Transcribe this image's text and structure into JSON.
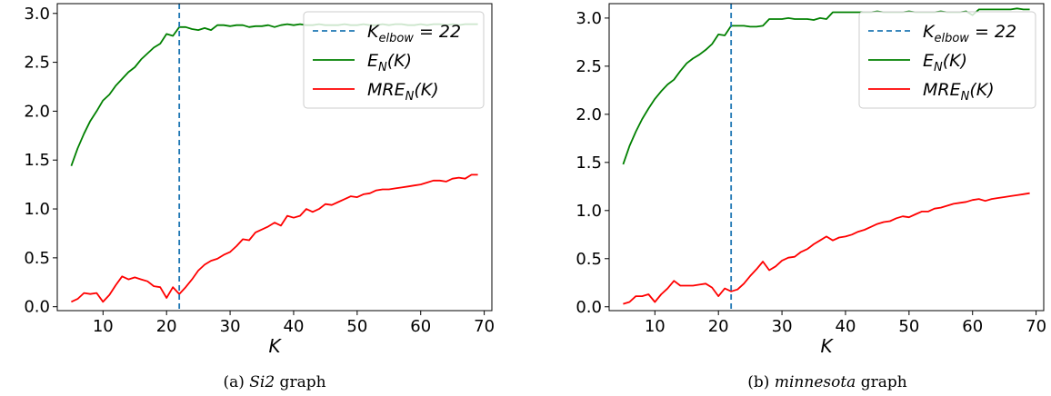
{
  "chart_data": [
    {
      "type": "line",
      "caption_prefix": "(a) ",
      "caption_name": "Si2",
      "caption_suffix": " graph",
      "xlabel": "K",
      "xlim": [
        2.8,
        71.2
      ],
      "ylim": [
        -0.04,
        3.1
      ],
      "xticks": [
        10,
        20,
        30,
        40,
        50,
        60,
        70
      ],
      "yticks": [
        0.0,
        0.5,
        1.0,
        1.5,
        2.0,
        2.5,
        3.0
      ],
      "grid": false,
      "legend_position": "top-right",
      "elbow": {
        "label_base": "K",
        "label_sub": "elbow",
        "label_rest": " = 22",
        "x": 22,
        "color": "#1f77b4"
      },
      "series": [
        {
          "label_base": "E",
          "label_sub": "N",
          "label_rest": "(K)",
          "color": "#008000",
          "x": [
            5,
            6,
            7,
            8,
            9,
            10,
            11,
            12,
            13,
            14,
            15,
            16,
            17,
            18,
            19,
            20,
            21,
            22,
            23,
            24,
            25,
            26,
            27,
            28,
            29,
            30,
            31,
            32,
            33,
            34,
            35,
            36,
            37,
            38,
            39,
            40,
            41,
            42,
            43,
            44,
            45,
            46,
            47,
            48,
            49,
            50,
            51,
            52,
            53,
            54,
            55,
            56,
            57,
            58,
            59,
            60,
            61,
            62,
            63,
            64,
            65,
            66,
            67,
            68,
            69
          ],
          "values": [
            1.44,
            1.62,
            1.77,
            1.9,
            2.0,
            2.11,
            2.17,
            2.26,
            2.33,
            2.4,
            2.45,
            2.53,
            2.59,
            2.65,
            2.69,
            2.79,
            2.77,
            2.86,
            2.86,
            2.84,
            2.83,
            2.85,
            2.83,
            2.88,
            2.88,
            2.87,
            2.88,
            2.88,
            2.86,
            2.87,
            2.87,
            2.88,
            2.86,
            2.88,
            2.89,
            2.88,
            2.89,
            2.88,
            2.88,
            2.89,
            2.88,
            2.88,
            2.88,
            2.89,
            2.88,
            2.88,
            2.89,
            2.88,
            2.88,
            2.89,
            2.88,
            2.89,
            2.89,
            2.88,
            2.88,
            2.89,
            2.88,
            2.89,
            2.89,
            2.88,
            2.89,
            2.88,
            2.89,
            2.89,
            2.89
          ]
        },
        {
          "label_base": "MRE",
          "label_sub": "N",
          "label_rest": "(K)",
          "color": "#ff0000",
          "x": [
            5,
            6,
            7,
            8,
            9,
            10,
            11,
            12,
            13,
            14,
            15,
            16,
            17,
            18,
            19,
            20,
            21,
            22,
            23,
            24,
            25,
            26,
            27,
            28,
            29,
            30,
            31,
            32,
            33,
            34,
            35,
            36,
            37,
            38,
            39,
            40,
            41,
            42,
            43,
            44,
            45,
            46,
            47,
            48,
            49,
            50,
            51,
            52,
            53,
            54,
            55,
            56,
            57,
            58,
            59,
            60,
            61,
            62,
            63,
            64,
            65,
            66,
            67,
            68,
            69
          ],
          "values": [
            0.05,
            0.08,
            0.14,
            0.13,
            0.14,
            0.05,
            0.12,
            0.22,
            0.31,
            0.28,
            0.3,
            0.28,
            0.26,
            0.21,
            0.2,
            0.09,
            0.2,
            0.13,
            0.2,
            0.28,
            0.37,
            0.43,
            0.47,
            0.49,
            0.53,
            0.56,
            0.62,
            0.69,
            0.68,
            0.76,
            0.79,
            0.82,
            0.86,
            0.83,
            0.93,
            0.91,
            0.93,
            1.0,
            0.97,
            1.0,
            1.05,
            1.04,
            1.07,
            1.1,
            1.13,
            1.12,
            1.15,
            1.16,
            1.19,
            1.2,
            1.2,
            1.21,
            1.22,
            1.23,
            1.24,
            1.25,
            1.27,
            1.29,
            1.29,
            1.28,
            1.31,
            1.32,
            1.31,
            1.35,
            1.35
          ]
        }
      ]
    },
    {
      "type": "line",
      "caption_prefix": "(b) ",
      "caption_name": "minnesota",
      "caption_suffix": " graph",
      "xlabel": "K",
      "xlim": [
        2.8,
        71.2
      ],
      "ylim": [
        -0.04,
        3.15
      ],
      "xticks": [
        10,
        20,
        30,
        40,
        50,
        60,
        70
      ],
      "yticks": [
        0.0,
        0.5,
        1.0,
        1.5,
        2.0,
        2.5,
        3.0
      ],
      "grid": false,
      "legend_position": "top-right",
      "elbow": {
        "label_base": "K",
        "label_sub": "elbow",
        "label_rest": " = 22",
        "x": 22,
        "color": "#1f77b4"
      },
      "series": [
        {
          "label_base": "E",
          "label_sub": "N",
          "label_rest": "(K)",
          "color": "#008000",
          "x": [
            5,
            6,
            7,
            8,
            9,
            10,
            11,
            12,
            13,
            14,
            15,
            16,
            17,
            18,
            19,
            20,
            21,
            22,
            23,
            24,
            25,
            26,
            27,
            28,
            29,
            30,
            31,
            32,
            33,
            34,
            35,
            36,
            37,
            38,
            39,
            40,
            41,
            42,
            43,
            44,
            45,
            46,
            47,
            48,
            49,
            50,
            51,
            52,
            53,
            54,
            55,
            56,
            57,
            58,
            59,
            60,
            61,
            62,
            63,
            64,
            65,
            66,
            67,
            68,
            69
          ],
          "values": [
            1.48,
            1.67,
            1.82,
            1.95,
            2.06,
            2.16,
            2.24,
            2.31,
            2.36,
            2.45,
            2.53,
            2.58,
            2.62,
            2.67,
            2.73,
            2.83,
            2.82,
            2.92,
            2.92,
            2.92,
            2.91,
            2.91,
            2.92,
            2.99,
            2.99,
            2.99,
            3.0,
            2.99,
            2.99,
            2.99,
            2.98,
            3.0,
            2.99,
            3.06,
            3.06,
            3.06,
            3.06,
            3.06,
            3.06,
            3.06,
            3.07,
            3.06,
            3.06,
            3.06,
            3.06,
            3.07,
            3.06,
            3.06,
            3.06,
            3.06,
            3.07,
            3.06,
            3.06,
            3.06,
            3.07,
            3.03,
            3.09,
            3.09,
            3.09,
            3.09,
            3.09,
            3.09,
            3.1,
            3.09,
            3.09
          ]
        },
        {
          "label_base": "MRE",
          "label_sub": "N",
          "label_rest": "(K)",
          "color": "#ff0000",
          "x": [
            5,
            6,
            7,
            8,
            9,
            10,
            11,
            12,
            13,
            14,
            15,
            16,
            17,
            18,
            19,
            20,
            21,
            22,
            23,
            24,
            25,
            26,
            27,
            28,
            29,
            30,
            31,
            32,
            33,
            34,
            35,
            36,
            37,
            38,
            39,
            40,
            41,
            42,
            43,
            44,
            45,
            46,
            47,
            48,
            49,
            50,
            51,
            52,
            53,
            54,
            55,
            56,
            57,
            58,
            59,
            60,
            61,
            62,
            63,
            64,
            65,
            66,
            67,
            68,
            69
          ],
          "values": [
            0.03,
            0.05,
            0.11,
            0.11,
            0.13,
            0.05,
            0.13,
            0.19,
            0.27,
            0.22,
            0.22,
            0.22,
            0.23,
            0.24,
            0.2,
            0.11,
            0.19,
            0.16,
            0.18,
            0.24,
            0.32,
            0.39,
            0.47,
            0.38,
            0.42,
            0.48,
            0.51,
            0.52,
            0.57,
            0.6,
            0.65,
            0.69,
            0.73,
            0.69,
            0.72,
            0.73,
            0.75,
            0.78,
            0.8,
            0.83,
            0.86,
            0.88,
            0.89,
            0.92,
            0.94,
            0.93,
            0.96,
            0.99,
            0.99,
            1.02,
            1.03,
            1.05,
            1.07,
            1.08,
            1.09,
            1.11,
            1.12,
            1.1,
            1.12,
            1.13,
            1.14,
            1.15,
            1.16,
            1.17,
            1.18
          ]
        }
      ]
    }
  ]
}
